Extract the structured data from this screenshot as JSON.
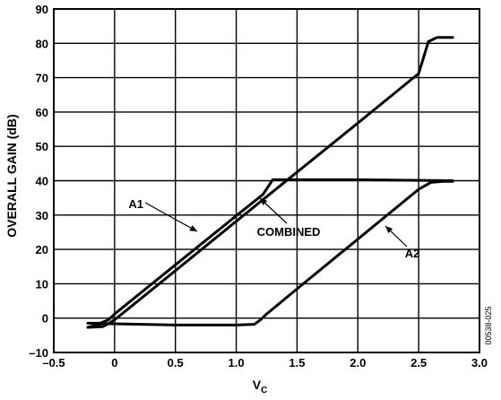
{
  "chart_data": {
    "type": "line",
    "xlabel": "V",
    "xlabel_sub": "C",
    "ylabel": "OVERALL GAIN (dB)",
    "xlim": [
      -0.5,
      3.0
    ],
    "ylim": [
      -10,
      90
    ],
    "x_ticks": [
      -0.5,
      0,
      0.5,
      1.0,
      1.5,
      2.0,
      2.5,
      3.0
    ],
    "x_tick_labels": [
      "–0.5",
      "0",
      "0.5",
      "1.0",
      "1.5",
      "2.0",
      "2.5",
      "3.0"
    ],
    "y_ticks": [
      -10,
      0,
      10,
      20,
      30,
      40,
      50,
      60,
      70,
      80,
      90
    ],
    "y_tick_labels": [
      "–10",
      "0",
      "10",
      "20",
      "30",
      "40",
      "50",
      "60",
      "70",
      "80",
      "90"
    ],
    "grid": true,
    "figure_id": "00538-025",
    "series": [
      {
        "name": "A1",
        "x": [
          -0.22,
          -0.12,
          -0.05,
          0.0,
          0.5,
          1.0,
          1.22,
          1.3,
          1.6,
          2.0,
          2.78
        ],
        "y": [
          -1.5,
          -1.5,
          -0.5,
          1.2,
          15.5,
          29.8,
          36.0,
          40.3,
          40.3,
          40.3,
          40.0
        ]
      },
      {
        "name": "COMBINED",
        "x": [
          -0.22,
          -0.1,
          -0.05,
          0.0,
          0.5,
          1.0,
          1.5,
          2.0,
          2.5,
          2.58,
          2.65,
          2.78
        ],
        "y": [
          -2.7,
          -2.5,
          -1.6,
          -0.5,
          13.8,
          28.2,
          42.5,
          56.8,
          71.2,
          80.5,
          81.7,
          81.7
        ]
      },
      {
        "name": "A2",
        "x": [
          -0.22,
          -0.1,
          0.5,
          1.0,
          1.15,
          1.2,
          1.25,
          1.5,
          2.0,
          2.5,
          2.6,
          2.7,
          2.78
        ],
        "y": [
          -2.7,
          -1.6,
          -2.0,
          -2.0,
          -1.8,
          -0.5,
          1.2,
          8.5,
          23.0,
          37.5,
          39.5,
          39.8,
          39.8
        ]
      }
    ],
    "annotations": [
      {
        "text": "A1",
        "target_series": "A1"
      },
      {
        "text": "COMBINED",
        "target_series": "COMBINED"
      },
      {
        "text": "A2",
        "target_series": "A2"
      }
    ]
  }
}
